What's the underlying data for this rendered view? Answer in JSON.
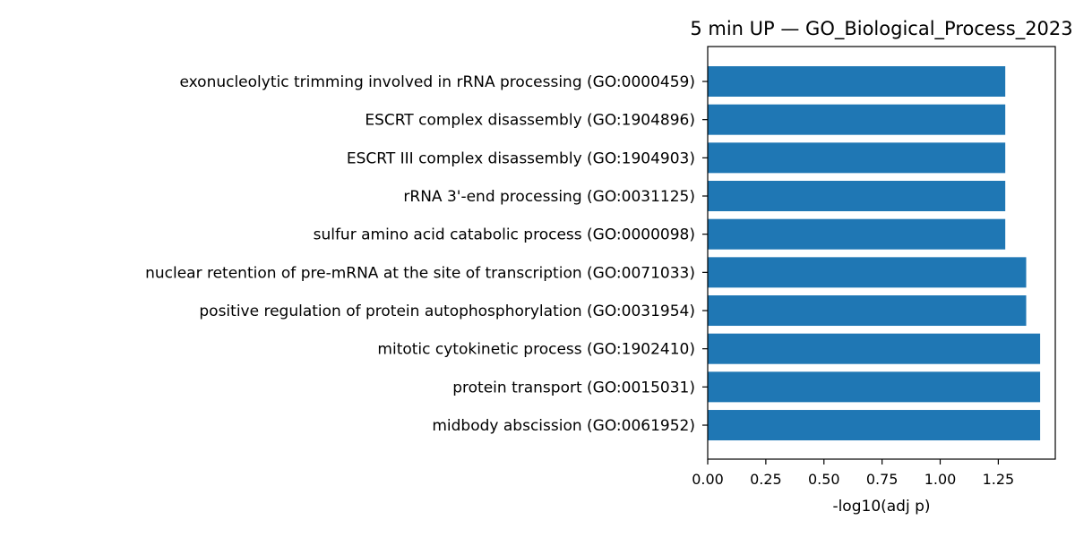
{
  "chart_data": {
    "type": "bar",
    "orientation": "horizontal",
    "title": "5 min UP — GO_Biological_Process_2023",
    "xlabel": "-log10(adj p)",
    "ylabel": "",
    "xlim": [
      0,
      1.5
    ],
    "xticks": [
      "0.00",
      "0.25",
      "0.50",
      "0.75",
      "1.00",
      "1.25"
    ],
    "grid": false,
    "bar_color": "#1f77b4",
    "categories": [
      "exonucleolytic trimming involved in rRNA processing (GO:0000459)",
      "ESCRT complex disassembly (GO:1904896)",
      "ESCRT III complex disassembly (GO:1904903)",
      "rRNA 3'-end processing (GO:0031125)",
      "sulfur amino acid catabolic process (GO:0000098)",
      "nuclear retention of pre-mRNA at the site of transcription (GO:0071033)",
      "positive regulation of protein autophosphorylation (GO:0031954)",
      "mitotic cytokinetic process (GO:1902410)",
      "protein transport (GO:0015031)",
      "midbody abscission (GO:0061952)"
    ],
    "values": [
      1.28,
      1.28,
      1.28,
      1.28,
      1.28,
      1.37,
      1.37,
      1.43,
      1.43,
      1.43
    ]
  }
}
